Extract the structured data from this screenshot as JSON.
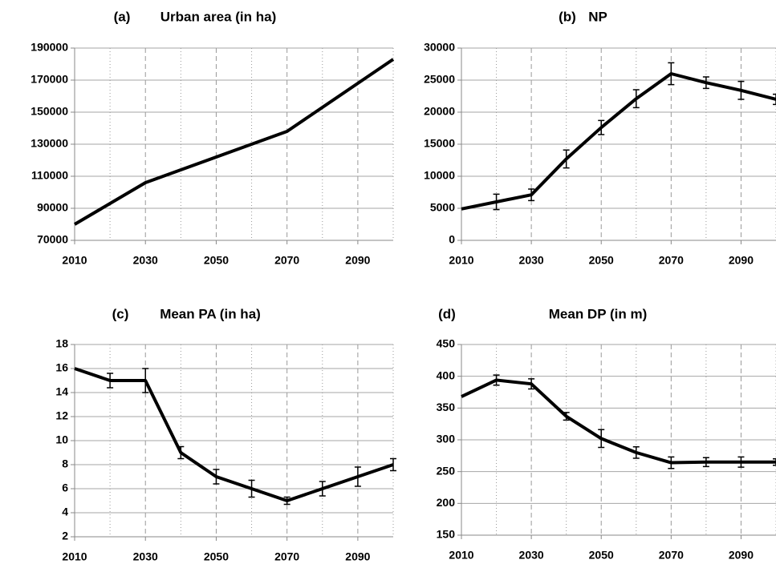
{
  "chart_data": [
    {
      "type": "line",
      "panel_label": "(a)",
      "title": "Urban area (in ha)",
      "x": [
        2010,
        2020,
        2030,
        2040,
        2050,
        2060,
        2070,
        2080,
        2090,
        2100
      ],
      "values": [
        80000,
        93000,
        106000,
        114000,
        122000,
        130000,
        138000,
        153000,
        168000,
        183000
      ],
      "color": "#000000",
      "xlim": [
        2010,
        2100
      ],
      "xticks": [
        2010,
        2030,
        2050,
        2070,
        2090
      ],
      "minor_xticks": [
        2020,
        2040,
        2060,
        2080,
        2100
      ],
      "ylim": [
        70000,
        190000
      ],
      "yticks": [
        70000,
        90000,
        110000,
        130000,
        150000,
        170000,
        190000
      ],
      "grid": true
    },
    {
      "type": "line",
      "panel_label": "(b)",
      "title": "NP",
      "x": [
        2010,
        2020,
        2030,
        2040,
        2050,
        2060,
        2070,
        2080,
        2090,
        2100
      ],
      "values": [
        4900,
        6000,
        7100,
        12700,
        17600,
        22100,
        26000,
        24600,
        23400,
        22000
      ],
      "errors": [
        null,
        1200,
        900,
        1400,
        1100,
        1400,
        1700,
        900,
        1400,
        800
      ],
      "color": "#000000",
      "xlim": [
        2010,
        2100
      ],
      "xticks": [
        2010,
        2030,
        2050,
        2070,
        2090
      ],
      "minor_xticks": [
        2020,
        2040,
        2060,
        2080,
        2100
      ],
      "ylim": [
        0,
        30000
      ],
      "yticks": [
        0,
        5000,
        10000,
        15000,
        20000,
        25000,
        30000
      ],
      "grid": true
    },
    {
      "type": "line",
      "panel_label": "(c)",
      "title": "Mean PA (in ha)",
      "x": [
        2010,
        2020,
        2030,
        2040,
        2050,
        2060,
        2070,
        2080,
        2090,
        2100
      ],
      "values": [
        16,
        15,
        15,
        9,
        7,
        6,
        5,
        6,
        7,
        8
      ],
      "errors": [
        null,
        0.6,
        1.0,
        0.5,
        0.6,
        0.7,
        0.3,
        0.6,
        0.8,
        0.5
      ],
      "color": "#000000",
      "xlim": [
        2010,
        2100
      ],
      "xticks": [
        2010,
        2030,
        2050,
        2070,
        2090
      ],
      "minor_xticks": [
        2020,
        2040,
        2060,
        2080,
        2100
      ],
      "ylim": [
        2,
        18
      ],
      "yticks": [
        2,
        4,
        6,
        8,
        10,
        12,
        14,
        16,
        18
      ],
      "grid": true
    },
    {
      "type": "line",
      "panel_label": "(d)",
      "title": "Mean DP (in m)",
      "x": [
        2010,
        2020,
        2030,
        2040,
        2050,
        2060,
        2070,
        2080,
        2090,
        2100
      ],
      "values": [
        368,
        394,
        388,
        337,
        302,
        280,
        264,
        265,
        265,
        265
      ],
      "errors": [
        null,
        8,
        8,
        6,
        14,
        9,
        9,
        7,
        8,
        5
      ],
      "color": "#000000",
      "xlim": [
        2010,
        2100
      ],
      "xticks": [
        2010,
        2030,
        2050,
        2070,
        2090
      ],
      "minor_xticks": [
        2020,
        2040,
        2060,
        2080,
        2100
      ],
      "ylim": [
        150,
        450
      ],
      "yticks": [
        150,
        200,
        250,
        300,
        350,
        400,
        450
      ],
      "grid": true
    }
  ]
}
